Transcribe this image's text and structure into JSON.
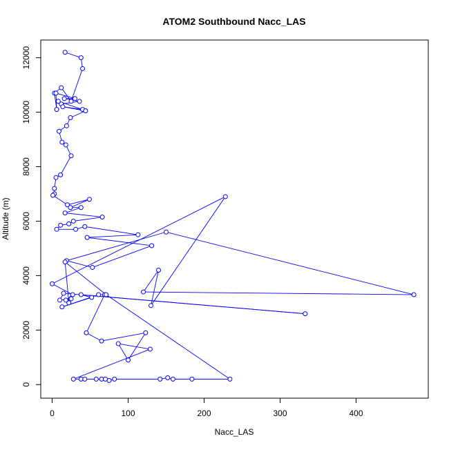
{
  "chart_data": {
    "type": "line",
    "title": "ATOM2 Southbound Nacc_LAS",
    "xlabel": "Nacc_LAS",
    "ylabel": "Altitude (m)",
    "xlim": [
      -15,
      495
    ],
    "ylim": [
      -500,
      12650
    ],
    "x_ticks": [
      0,
      100,
      200,
      300,
      400
    ],
    "y_ticks": [
      0,
      2000,
      4000,
      6000,
      8000,
      10000,
      12000
    ],
    "marker": "open-circle",
    "grid": false,
    "legend": "none",
    "series_color": "#0000ff",
    "points": [
      [
        17,
        12200
      ],
      [
        38,
        12000
      ],
      [
        40,
        11600
      ],
      [
        25,
        10400
      ],
      [
        12,
        10900
      ],
      [
        3,
        10700
      ],
      [
        6,
        10100
      ],
      [
        5,
        10700
      ],
      [
        30,
        10500
      ],
      [
        16,
        10500
      ],
      [
        36,
        10400
      ],
      [
        12,
        10300
      ],
      [
        8,
        10400
      ],
      [
        40,
        10100
      ],
      [
        14,
        10200
      ],
      [
        44,
        10050
      ],
      [
        24,
        9800
      ],
      [
        19,
        9500
      ],
      [
        9,
        9300
      ],
      [
        13,
        8900
      ],
      [
        18,
        8800
      ],
      [
        25,
        8400
      ],
      [
        11,
        7700
      ],
      [
        5,
        7600
      ],
      [
        3,
        7200
      ],
      [
        3,
        7000
      ],
      [
        1,
        6950
      ],
      [
        20,
        6600
      ],
      [
        49,
        6800
      ],
      [
        24,
        6500
      ],
      [
        38,
        6500
      ],
      [
        17,
        6300
      ],
      [
        66,
        6150
      ],
      [
        28,
        6000
      ],
      [
        22,
        5900
      ],
      [
        11,
        5850
      ],
      [
        6,
        5700
      ],
      [
        31,
        5700
      ],
      [
        43,
        5800
      ],
      [
        113,
        5500
      ],
      [
        46,
        5400
      ],
      [
        131,
        5100
      ],
      [
        53,
        4300
      ],
      [
        19,
        4550
      ],
      [
        150,
        5600
      ],
      [
        476,
        3300
      ],
      [
        120,
        3400
      ],
      [
        140,
        4200
      ],
      [
        130,
        2900
      ],
      [
        228,
        6900
      ],
      [
        0,
        3700
      ],
      [
        27,
        3300
      ],
      [
        18,
        3100
      ],
      [
        25,
        3150
      ],
      [
        10,
        3100
      ],
      [
        15,
        3350
      ],
      [
        333,
        2600
      ],
      [
        38,
        3300
      ],
      [
        52,
        3200
      ],
      [
        13,
        2850
      ],
      [
        61,
        3300
      ],
      [
        69,
        3300
      ],
      [
        45,
        1900
      ],
      [
        65,
        1600
      ],
      [
        123,
        1900
      ],
      [
        100,
        900
      ],
      [
        87,
        1500
      ],
      [
        129,
        1300
      ],
      [
        28,
        200
      ],
      [
        38,
        200
      ],
      [
        43,
        200
      ],
      [
        58,
        200
      ],
      [
        65,
        200
      ],
      [
        70,
        200
      ],
      [
        75,
        150
      ],
      [
        82,
        200
      ],
      [
        142,
        200
      ],
      [
        152,
        250
      ],
      [
        159,
        200
      ],
      [
        184,
        200
      ],
      [
        234,
        200
      ],
      [
        71,
        3300
      ],
      [
        17,
        4500
      ],
      [
        22,
        3000
      ]
    ]
  }
}
